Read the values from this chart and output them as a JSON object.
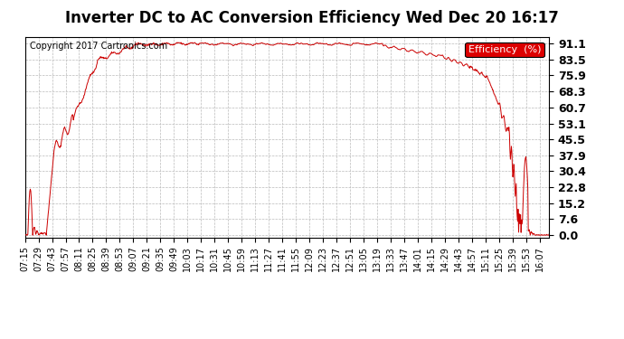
{
  "title": "Inverter DC to AC Conversion Efficiency Wed Dec 20 16:17",
  "copyright": "Copyright 2017 Cartronics.com",
  "legend_label": "Efficiency  (%)",
  "legend_bg": "#dd0000",
  "legend_text_color": "#ffffff",
  "line_color": "#cc0000",
  "bg_color": "#ffffff",
  "plot_bg_color": "#ffffff",
  "grid_color": "#bbbbbb",
  "yticks": [
    0.0,
    7.6,
    15.2,
    22.8,
    30.4,
    37.9,
    45.5,
    53.1,
    60.7,
    68.3,
    75.9,
    83.5,
    91.1
  ],
  "xtick_labels": [
    "07:15",
    "07:29",
    "07:43",
    "07:57",
    "08:11",
    "08:25",
    "08:39",
    "08:53",
    "09:07",
    "09:21",
    "09:35",
    "09:49",
    "10:03",
    "10:17",
    "10:31",
    "10:45",
    "10:59",
    "11:13",
    "11:27",
    "11:41",
    "11:55",
    "12:09",
    "12:23",
    "12:37",
    "12:51",
    "13:05",
    "13:19",
    "13:33",
    "13:47",
    "14:01",
    "14:15",
    "14:29",
    "14:43",
    "14:57",
    "15:11",
    "15:25",
    "15:39",
    "15:53",
    "16:07"
  ],
  "title_fontsize": 12,
  "axis_fontsize": 7,
  "copyright_fontsize": 7,
  "yticklabel_fontsize": 9
}
